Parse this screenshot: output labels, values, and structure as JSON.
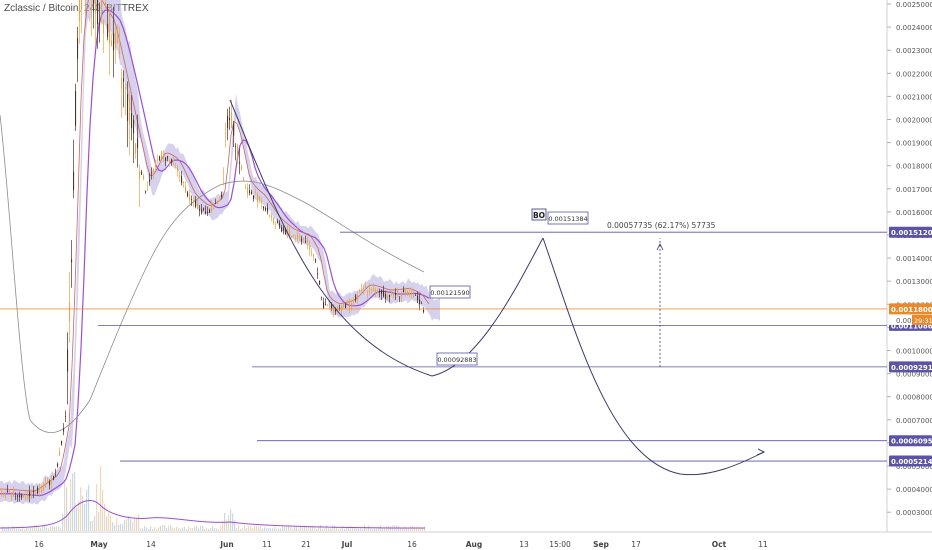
{
  "header": {
    "title": "Zclassic / Bitcoin, 240, BITTREX"
  },
  "chart_data": {
    "type": "candlestick",
    "ylim": [
      0.00025,
      0.0025
    ],
    "y_ticks": [
      "0.00250000",
      "0.00240000",
      "0.00230000",
      "0.00220000",
      "0.00210000",
      "0.00200000",
      "0.00190000",
      "0.00180000",
      "0.00170000",
      "0.00160000",
      "0.00150000",
      "0.00140000",
      "0.00130000",
      "0.00120000",
      "0.00110000",
      "0.00100000",
      "0.00090000",
      "0.00080000",
      "0.00070000",
      "0.00060000",
      "0.00050000",
      "0.00040000",
      "0.00030000"
    ],
    "x_ticks": [
      "16",
      "May",
      "14",
      "Jun",
      "11",
      "21",
      "Jul",
      "16",
      "Aug",
      "13",
      "15:00",
      "Sep",
      "17",
      "Oct",
      "11"
    ],
    "price_badges": [
      {
        "value": "0.00151209",
        "price": 0.00151209,
        "color": "#5b54a6"
      },
      {
        "value": "0.00118000",
        "price": 0.00118,
        "color": "#e8892b"
      },
      {
        "value": "0.00110863",
        "price": 0.00110863,
        "color": "#5b54a6"
      },
      {
        "value": "0.00092914",
        "price": 0.00092914,
        "color": "#5b54a6"
      },
      {
        "value": "0.00060951",
        "price": 0.00060951,
        "color": "#5b54a6"
      },
      {
        "value": "0.00052140",
        "price": 0.0005214,
        "color": "#5b54a6"
      }
    ],
    "current_partial": "0.0011",
    "countdown": "29:31",
    "callouts": [
      {
        "text": "0.00121590",
        "price": 0.0012159
      },
      {
        "text": "0.00092883",
        "price": 0.00092883
      },
      {
        "text": "0.00151384",
        "price": 0.00151384
      }
    ],
    "bo_label": "BO",
    "measure_text": "0.00057735 (62.17%) 57735",
    "horizontal_levels": [
      0.00151209,
      0.00110863,
      0.00092914,
      0.00060951,
      0.0005214
    ],
    "current_price": 0.00118,
    "colors": {
      "up": "#e8a64a",
      "down": "#4a3428",
      "ma_purple": "#9b4fd6",
      "cloud": "#b5acdf",
      "drawing": "#3d3a6a",
      "current": "#e8892b"
    }
  }
}
